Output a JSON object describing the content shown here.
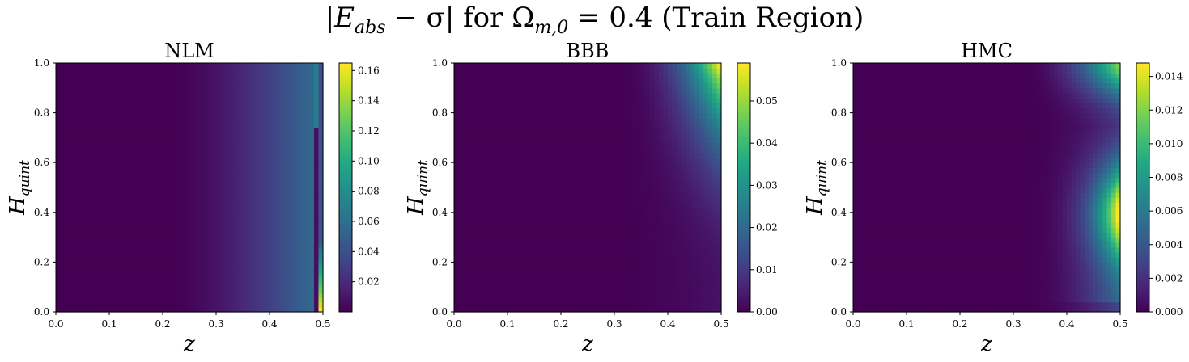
{
  "figure": {
    "suptitle_left": "|E",
    "suptitle_sub": "abs",
    "suptitle_mid": " − σ| for Ω",
    "suptitle_sub2": "m,0",
    "suptitle_right": " = 0.4 (Train Region)"
  },
  "colormap": "viridis",
  "chart_data": [
    {
      "type": "heatmap",
      "title": "NLM",
      "xlabel": "z",
      "ylabel_main": "H",
      "ylabel_sub": "quint",
      "xlim": [
        0.0,
        0.5
      ],
      "ylim": [
        0.0,
        1.0
      ],
      "x_ticks": [
        "0.0",
        "0.1",
        "0.2",
        "0.3",
        "0.4",
        "0.5"
      ],
      "y_ticks": [
        "0.0",
        "0.2",
        "0.4",
        "0.6",
        "0.8",
        "1.0"
      ],
      "colorbar_range": [
        0.0,
        0.165
      ],
      "colorbar_ticks": [
        "0.02",
        "0.04",
        "0.06",
        "0.08",
        "0.10",
        "0.12",
        "0.14",
        "0.16"
      ],
      "pattern": "error grows with z, roughly uniform in H_quint, dark streak near z=0.49 with bright edge at low H_quint"
    },
    {
      "type": "heatmap",
      "title": "BBB",
      "xlabel": "z",
      "ylabel_main": "H",
      "ylabel_sub": "quint",
      "xlim": [
        0.0,
        0.5
      ],
      "ylim": [
        0.0,
        1.0
      ],
      "x_ticks": [
        "0.0",
        "0.1",
        "0.2",
        "0.3",
        "0.4",
        "0.5"
      ],
      "y_ticks": [
        "0.0",
        "0.2",
        "0.4",
        "0.6",
        "0.8",
        "1.0"
      ],
      "colorbar_range": [
        0.0,
        0.059
      ],
      "colorbar_ticks": [
        "0.00",
        "0.01",
        "0.02",
        "0.03",
        "0.04",
        "0.05"
      ],
      "pattern": "error concentrated in the high-z, high-H_quint corner"
    },
    {
      "type": "heatmap",
      "title": "HMC",
      "xlabel": "z",
      "ylabel_main": "H",
      "ylabel_sub": "quint",
      "xlim": [
        0.0,
        0.5
      ],
      "ylim": [
        0.0,
        1.0
      ],
      "x_ticks": [
        "0.0",
        "0.1",
        "0.2",
        "0.3",
        "0.4",
        "0.5"
      ],
      "y_ticks": [
        "0.0",
        "0.2",
        "0.4",
        "0.6",
        "0.8",
        "1.0"
      ],
      "colorbar_range": [
        0.0,
        0.0148
      ],
      "colorbar_ticks": [
        "0.000",
        "0.002",
        "0.004",
        "0.006",
        "0.008",
        "0.010",
        "0.012",
        "0.014"
      ],
      "pattern": "error high near z=0.5 at H_quint≈0.4 and top-right corner, low band around H_quint≈0.75"
    }
  ]
}
